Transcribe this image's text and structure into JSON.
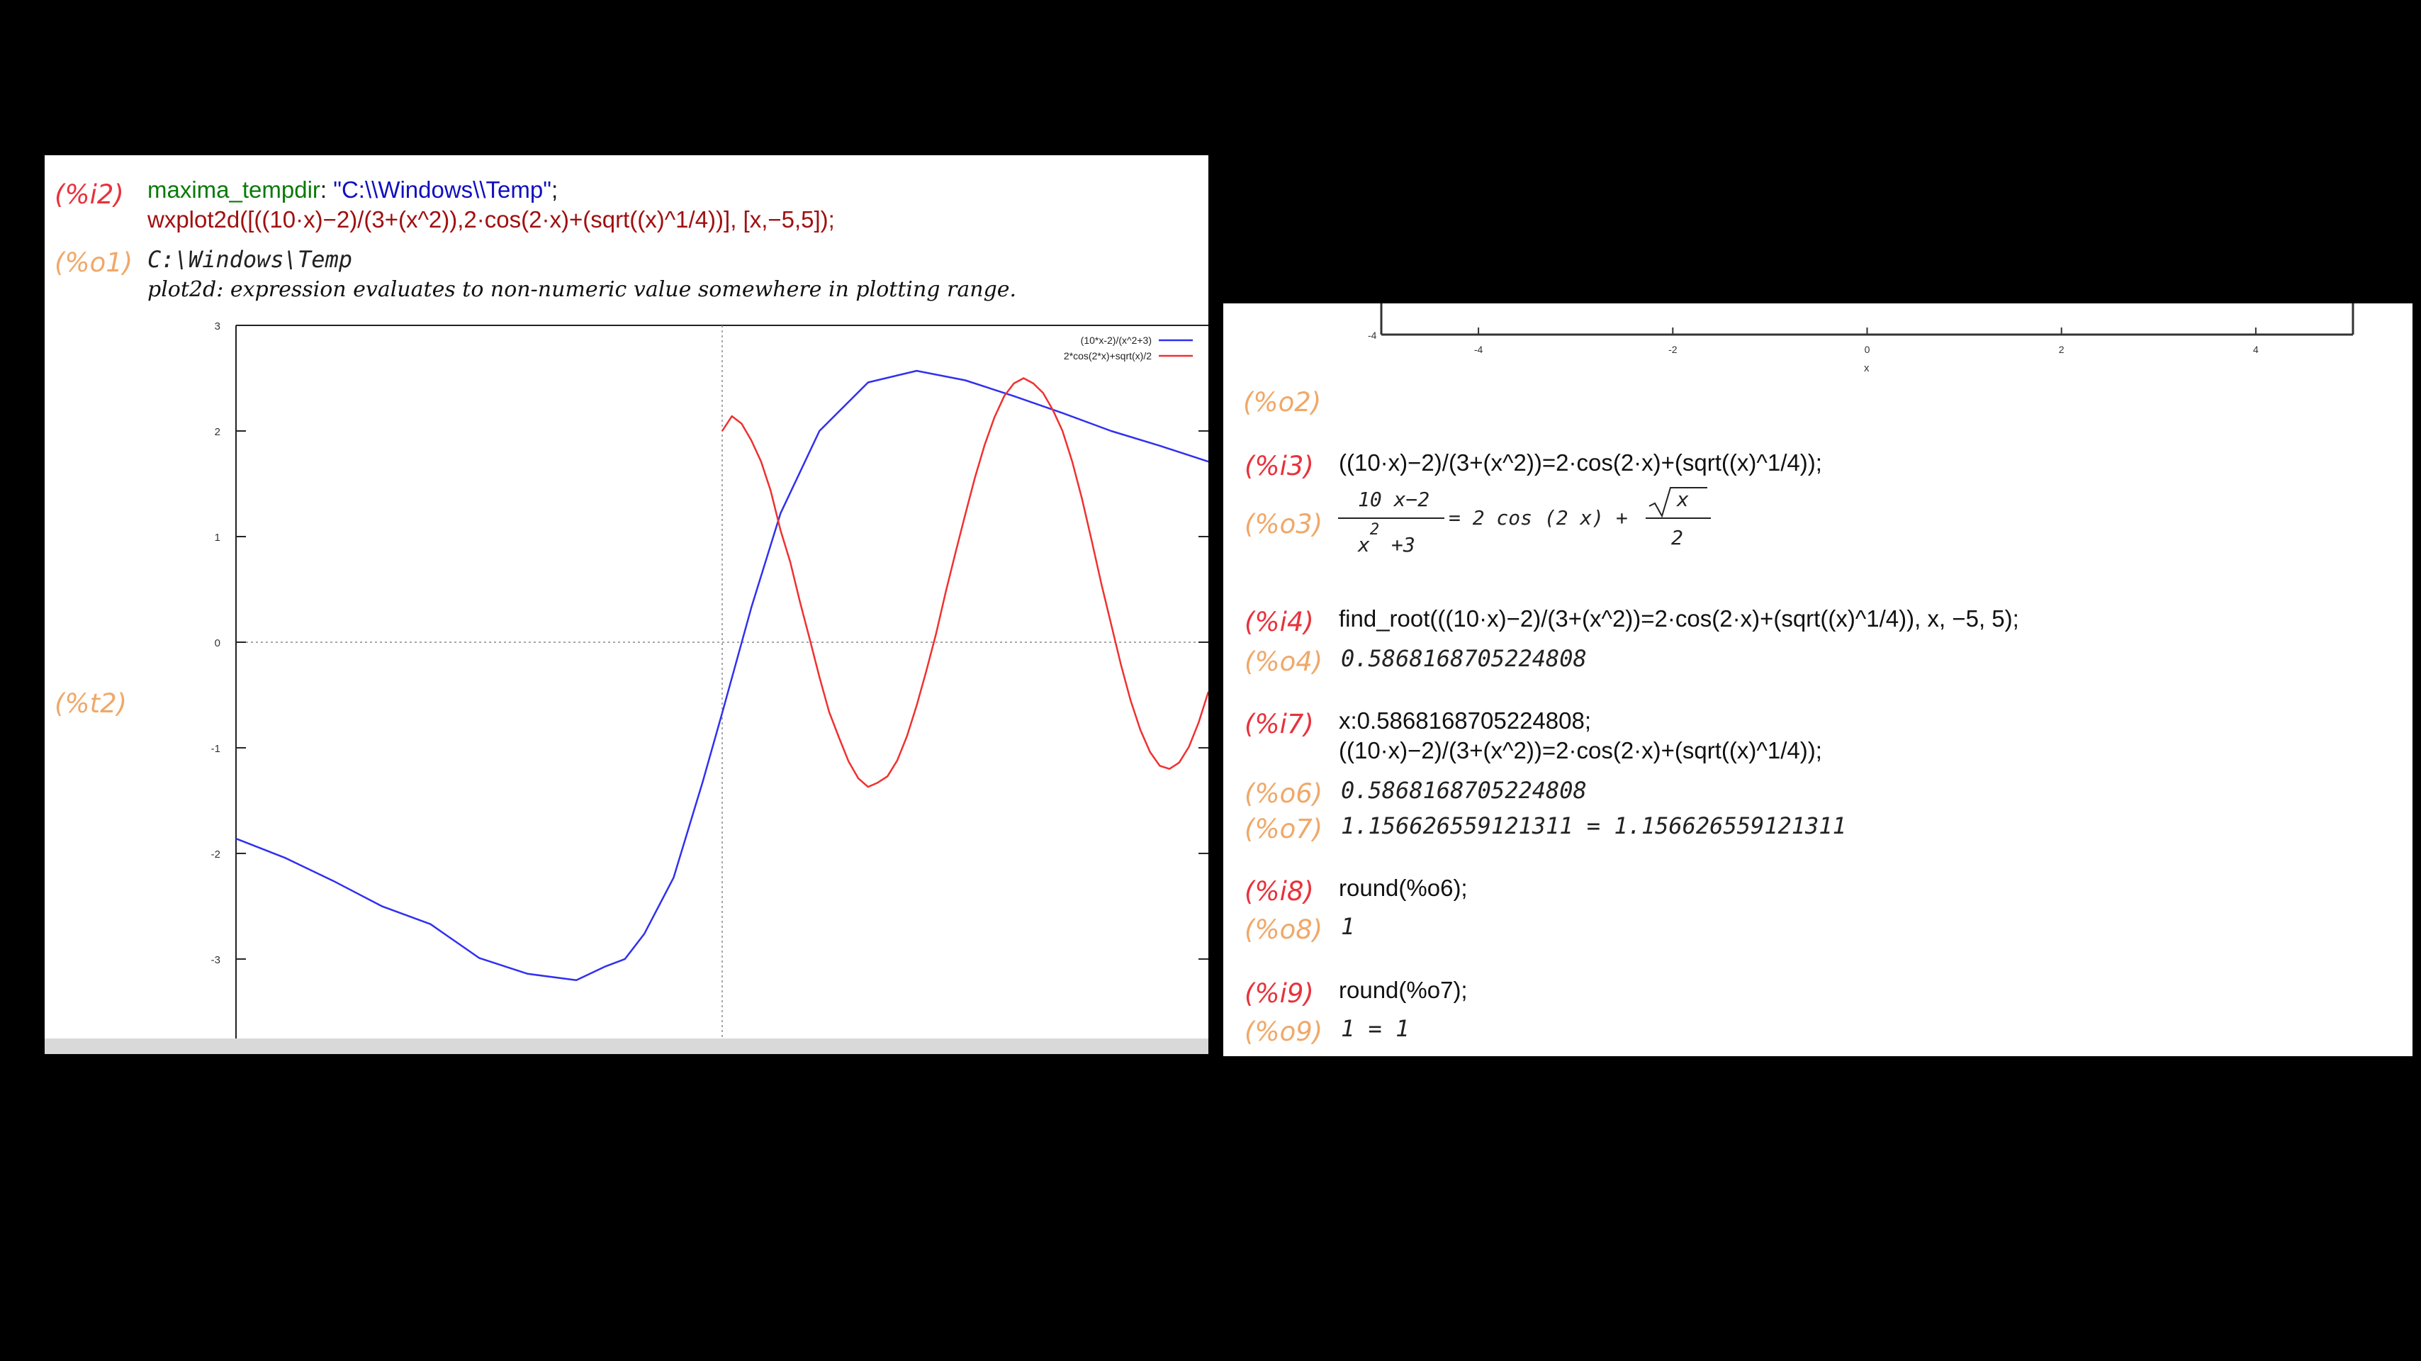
{
  "left": {
    "cell_i2": {
      "label": "(%i2)",
      "line1": {
        "name": "maxima_tempdir",
        "sep": ": ",
        "value": "\"C:\\\\Windows\\\\Temp\"",
        "end": ";"
      },
      "line2": "wxplot2d([((10·x)−2)/(3+(x^2)),2·cos(2·x)+(sqrt((x)^1/4))], [x,−5,5]);"
    },
    "cell_o1": {
      "label": "(%o1)",
      "value": "C:\\Windows\\Temp",
      "message": "plot2d: expression evaluates to non-numeric value somewhere in plotting range."
    },
    "cell_t2": {
      "label": "(%t2)"
    },
    "chart_data": {
      "type": "line",
      "xlim": [
        -5,
        5
      ],
      "ylim": [
        -3.9,
        3
      ],
      "yticks": [
        "3",
        "2",
        "1",
        "0",
        "-1",
        "-2",
        "-3"
      ],
      "legend_position": "top-right",
      "series": [
        {
          "name": "(10*x-2)/(x^2+3)",
          "color": "#3030f0",
          "x": [
            -5,
            -4.5,
            -4,
            -3.5,
            -3,
            -2.5,
            -2,
            -1.5,
            -1.2,
            -1,
            -0.8,
            -0.5,
            -0.2,
            0,
            0.3,
            0.6,
            1,
            1.5,
            2,
            2.5,
            3,
            3.5,
            4,
            4.5,
            5
          ],
          "y": [
            -1.86,
            -2.04,
            -2.26,
            -2.5,
            -2.67,
            -2.99,
            -3.14,
            -3.2,
            -3.07,
            -3.0,
            -2.76,
            -2.23,
            -1.32,
            -0.67,
            0.33,
            1.22,
            2.0,
            2.46,
            2.57,
            2.48,
            2.33,
            2.17,
            2.0,
            1.86,
            1.71
          ]
        },
        {
          "name": "2*cos(2*x)+sqrt(x)/2",
          "color": "#f03030",
          "x": [
            0,
            0.1,
            0.2,
            0.3,
            0.4,
            0.5,
            0.6,
            0.7,
            0.8,
            0.9,
            1,
            1.1,
            1.2,
            1.3,
            1.4,
            1.5,
            1.6,
            1.7,
            1.8,
            1.9,
            2,
            2.1,
            2.2,
            2.3,
            2.4,
            2.5,
            2.6,
            2.7,
            2.8,
            2.9,
            3,
            3.1,
            3.2,
            3.3,
            3.4,
            3.5,
            3.6,
            3.7,
            3.8,
            3.9,
            4,
            4.1,
            4.2,
            4.3,
            4.4,
            4.5,
            4.6,
            4.7,
            4.8,
            4.9,
            5
          ],
          "y": [
            2.0,
            2.14,
            2.07,
            1.91,
            1.71,
            1.43,
            1.06,
            0.76,
            0.38,
            0.03,
            -0.33,
            -0.66,
            -0.9,
            -1.13,
            -1.29,
            -1.37,
            -1.33,
            -1.27,
            -1.12,
            -0.89,
            -0.6,
            -0.27,
            0.08,
            0.48,
            0.85,
            1.21,
            1.56,
            1.87,
            2.13,
            2.33,
            2.45,
            2.5,
            2.45,
            2.36,
            2.2,
            2.0,
            1.71,
            1.36,
            0.96,
            0.55,
            0.17,
            -0.21,
            -0.55,
            -0.83,
            -1.04,
            -1.17,
            -1.2,
            -1.14,
            -0.99,
            -0.76,
            -0.47
          ]
        }
      ]
    }
  },
  "right": {
    "top_axis": {
      "ticks": [
        "-4",
        "-2",
        "0",
        "2",
        "4"
      ],
      "corner": "-4",
      "xlabel": "x"
    },
    "cell_o2": {
      "label": "(%o2)"
    },
    "cell_i3": {
      "label": "(%i3)",
      "code": "((10·x)−2)/(3+(x^2))=2·cos(2·x)+(sqrt((x)^1/4));"
    },
    "cell_o3": {
      "label": "(%o3)",
      "num": "10 x−2",
      "den": "x",
      "den_exp": "2",
      "den_rest": " +3",
      "mid": "= 2 cos (2 x) +",
      "sqrt_arg": "x",
      "den2": "2"
    },
    "cell_i4": {
      "label": "(%i4)",
      "code": "find_root(((10·x)−2)/(3+(x^2))=2·cos(2·x)+(sqrt((x)^1/4)), x, −5, 5);"
    },
    "cell_o4": {
      "label": "(%o4)",
      "value": "0.5868168705224808"
    },
    "cell_i7": {
      "label": "(%i7)",
      "line1": "x:0.5868168705224808;",
      "line2": "((10·x)−2)/(3+(x^2))=2·cos(2·x)+(sqrt((x)^1/4));"
    },
    "cell_o6": {
      "label": "(%o6)",
      "value": "0.5868168705224808"
    },
    "cell_o7": {
      "label": "(%o7)",
      "value": "1.156626559121311 = 1.156626559121311"
    },
    "cell_i8": {
      "label": "(%i8)",
      "code": "round(%o6);"
    },
    "cell_o8": {
      "label": "(%o8)",
      "value": "1"
    },
    "cell_i9": {
      "label": "(%i9)",
      "code": "round(%o7);"
    },
    "cell_o9": {
      "label": "(%o9)",
      "value": "1 = 1"
    }
  }
}
